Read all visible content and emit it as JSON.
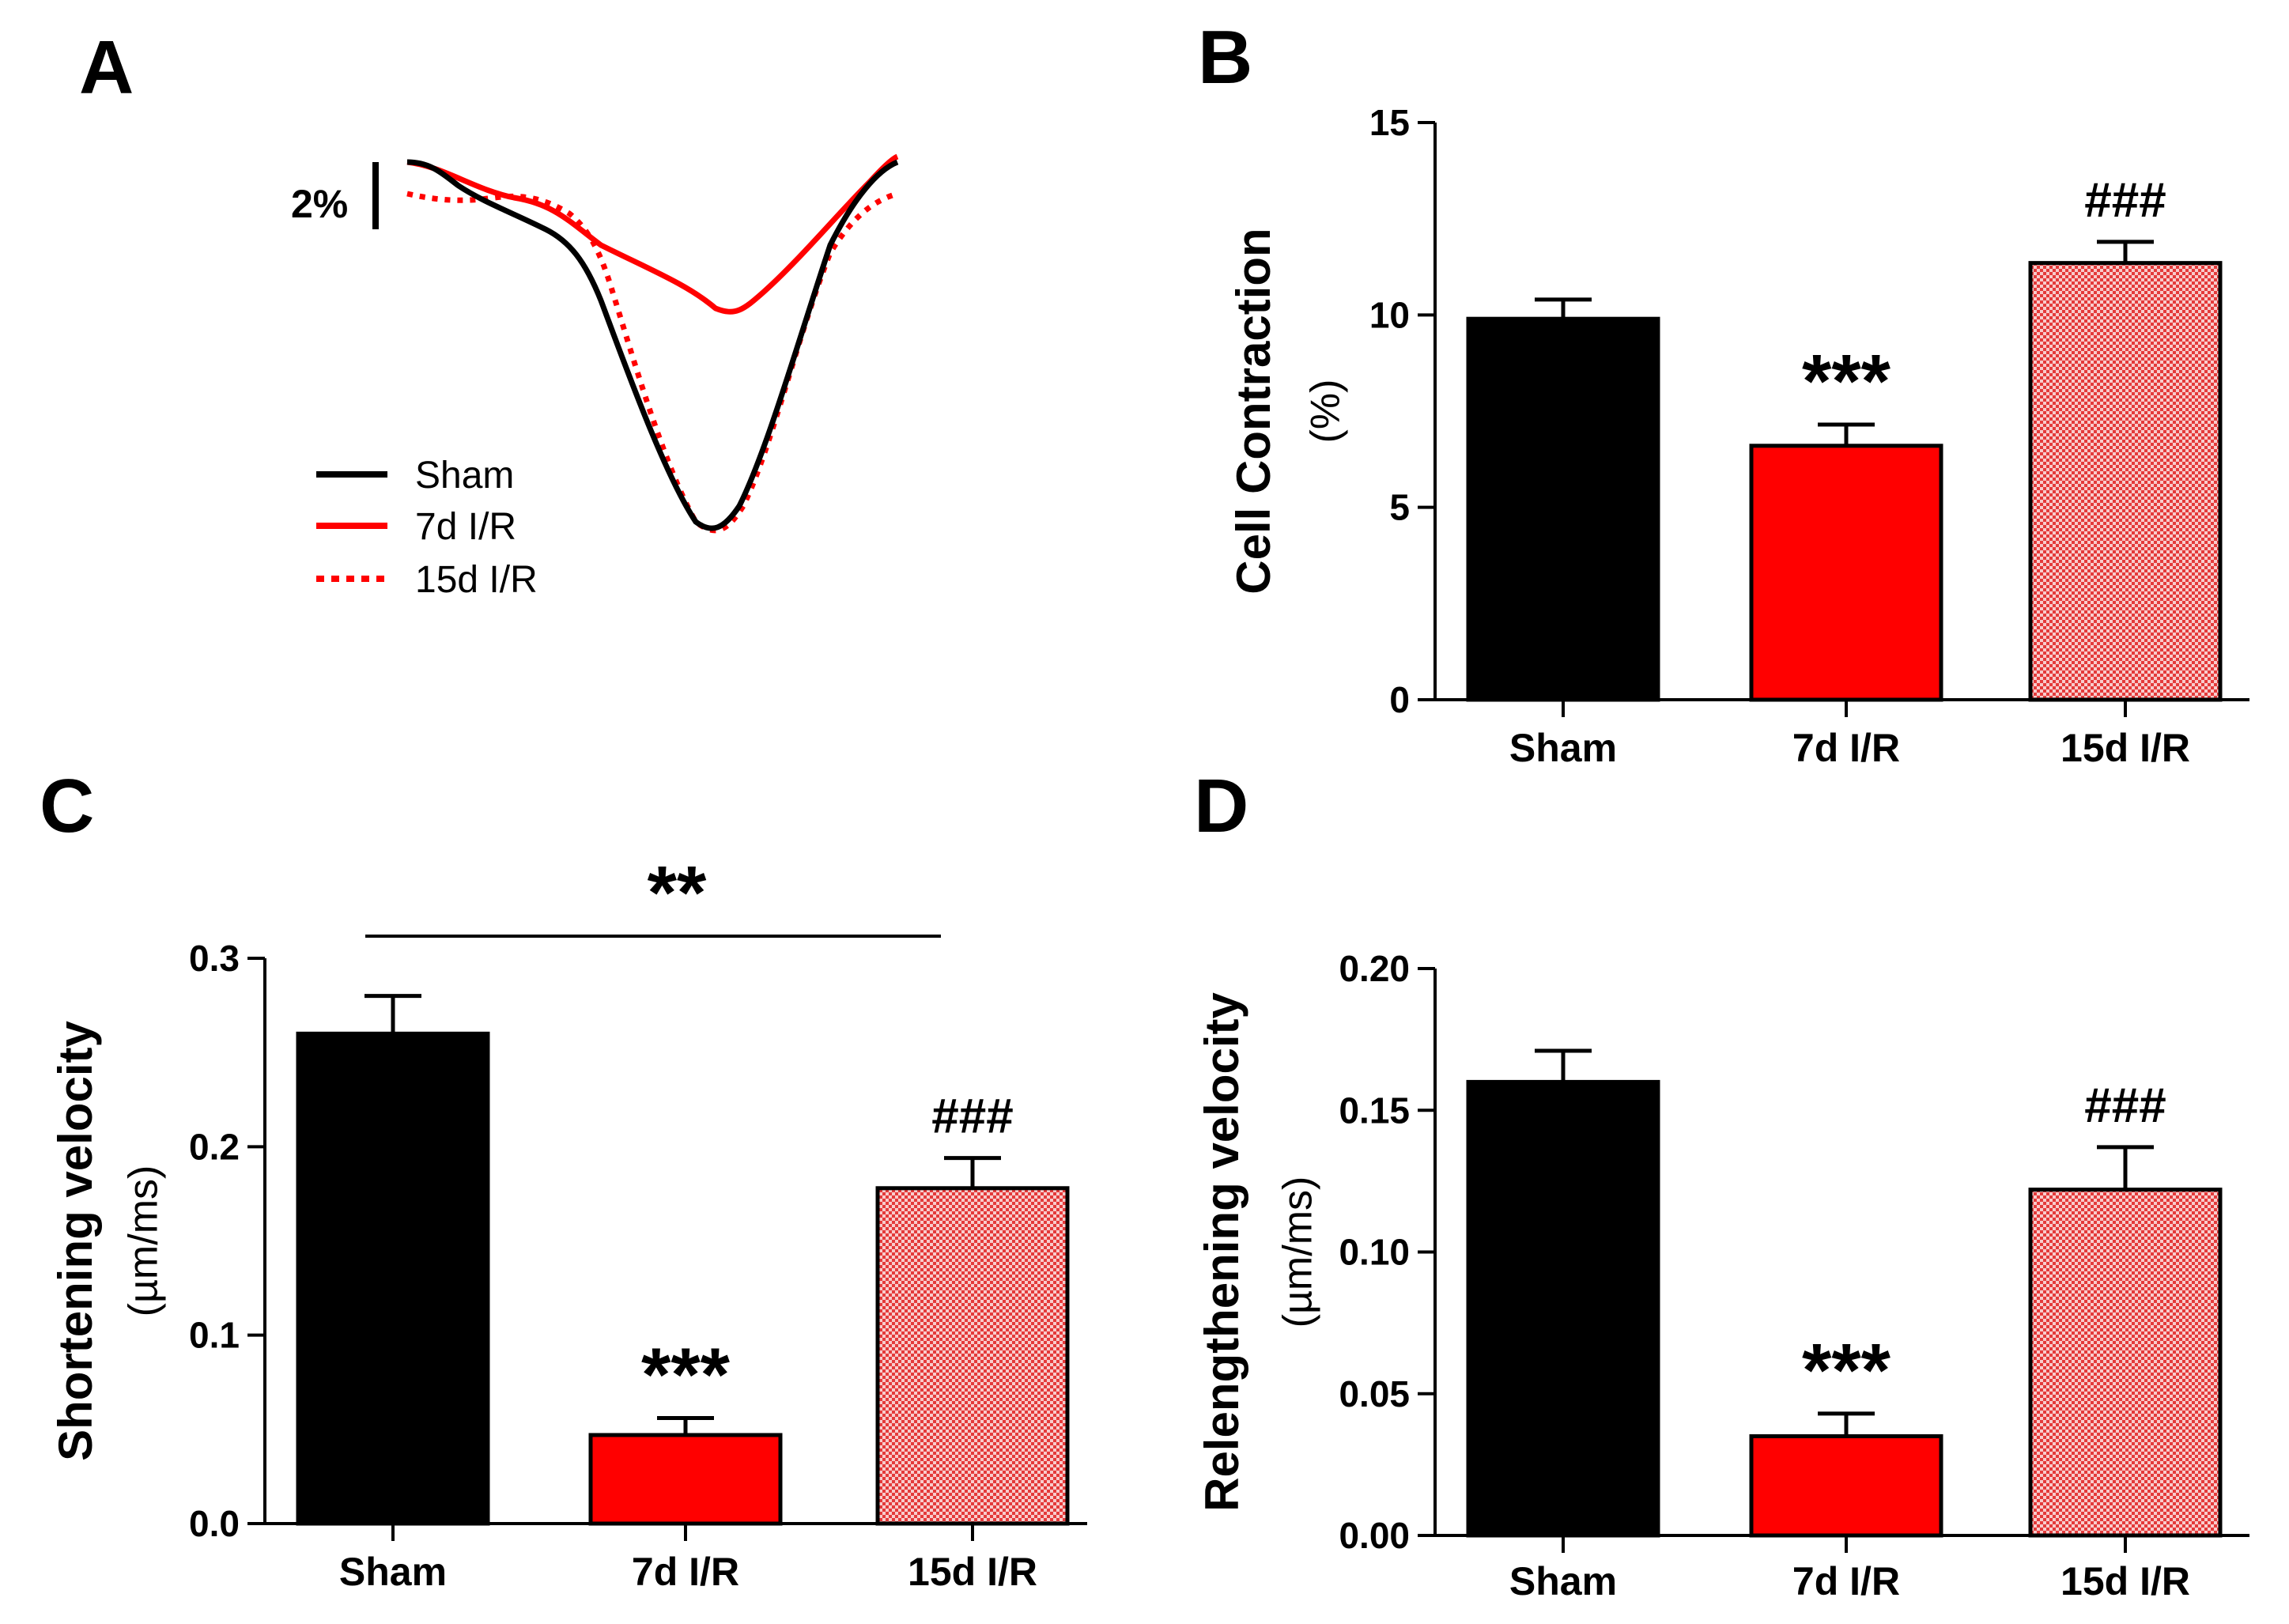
{
  "colors": {
    "sham": "#000000",
    "ir7": "#ff0000",
    "ir15_fill": "#f7b9b9",
    "ir15_stroke": "#e03030",
    "axis": "#000000"
  },
  "panel_a": {
    "label": "A",
    "scale_bar_label": "2%",
    "legend": [
      {
        "name": "Sham",
        "color": "#000000",
        "style": "solid"
      },
      {
        "name": "7d I/R",
        "color": "#ff0000",
        "style": "solid"
      },
      {
        "name": "15d I/R",
        "color": "#ff0000",
        "style": "dotted"
      }
    ]
  },
  "chart_data": [
    {
      "panel": "B",
      "type": "bar",
      "ylabel": "Cell Contraction",
      "yunit": "(%)",
      "categories": [
        "Sham",
        "7d I/R",
        "15d I/R"
      ],
      "values": [
        9.9,
        6.6,
        11.35
      ],
      "errors": [
        0.5,
        0.55,
        0.55
      ],
      "ylim": [
        0,
        15
      ],
      "yticks": [
        0,
        5,
        10,
        15
      ],
      "tick_labels": [
        "0",
        "5",
        "10",
        "15"
      ],
      "annotations": [
        {
          "category": 1,
          "text": "***"
        },
        {
          "category": 2,
          "text": "###"
        }
      ]
    },
    {
      "panel": "C",
      "type": "bar",
      "ylabel": "Shortening velocity",
      "yunit": "(µm/ms)",
      "categories": [
        "Sham",
        "7d I/R",
        "15d I/R"
      ],
      "values": [
        0.26,
        0.047,
        0.178
      ],
      "errors": [
        0.02,
        0.009,
        0.016
      ],
      "ylim": [
        0,
        0.3
      ],
      "yticks": [
        0,
        0.1,
        0.2,
        0.3
      ],
      "tick_labels": [
        "0.0",
        "0.1",
        "0.2",
        "0.3"
      ],
      "annotations": [
        {
          "category": 1,
          "text": "***"
        },
        {
          "category": 2,
          "text": "###"
        }
      ],
      "bracket": {
        "from": 0,
        "to": 2,
        "text": "**"
      }
    },
    {
      "panel": "D",
      "type": "bar",
      "ylabel": "Relengthening velocity",
      "yunit": "(µm/ms)",
      "categories": [
        "Sham",
        "7d I/R",
        "15d I/R"
      ],
      "values": [
        0.16,
        0.035,
        0.122
      ],
      "errors": [
        0.011,
        0.008,
        0.015
      ],
      "ylim": [
        0,
        0.2
      ],
      "yticks": [
        0,
        0.05,
        0.1,
        0.15,
        0.2
      ],
      "tick_labels": [
        "0.00",
        "0.05",
        "0.10",
        "0.15",
        "0.20"
      ],
      "annotations": [
        {
          "category": 1,
          "text": "***"
        },
        {
          "category": 2,
          "text": "###"
        }
      ]
    }
  ]
}
